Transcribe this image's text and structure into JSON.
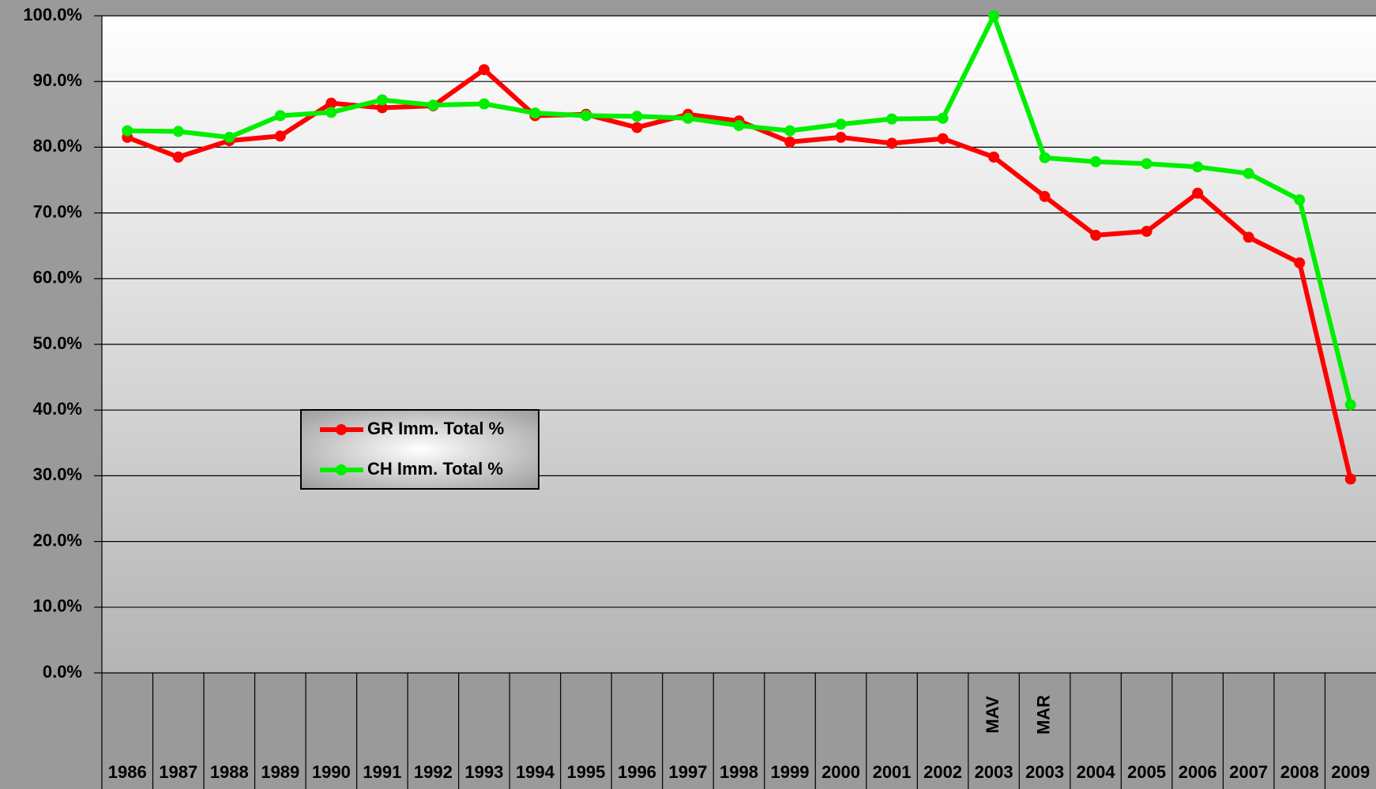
{
  "chart_data": {
    "type": "line",
    "categories": [
      "1986",
      "1987",
      "1988",
      "1989",
      "1990",
      "1991",
      "1992",
      "1993",
      "1994",
      "1995",
      "1996",
      "1997",
      "1998",
      "1999",
      "2000",
      "2001",
      "2002",
      "2003",
      "2003",
      "2004",
      "2005",
      "2006",
      "2007",
      "2008",
      "2009"
    ],
    "sublabels": [
      null,
      null,
      null,
      null,
      null,
      null,
      null,
      null,
      null,
      null,
      null,
      null,
      null,
      null,
      null,
      null,
      null,
      "MAV",
      "MAR",
      null,
      null,
      null,
      null,
      null,
      null
    ],
    "series": [
      {
        "name": "GR Imm. Total %",
        "color": "#ff0000",
        "values": [
          81.5,
          78.5,
          81,
          81.7,
          86.7,
          86,
          86.3,
          91.8,
          84.8,
          85,
          83,
          85,
          84,
          80.8,
          81.5,
          80.6,
          81.3,
          78.5,
          72.5,
          66.6,
          67.2,
          73,
          66.3,
          62.4,
          29.5
        ]
      },
      {
        "name": "CH Imm. Total %",
        "color": "#00ee00",
        "values": [
          82.5,
          82.4,
          81.5,
          84.8,
          85.3,
          87.2,
          86.4,
          86.6,
          85.2,
          84.8,
          84.7,
          84.4,
          83.3,
          82.5,
          83.5,
          84.3,
          84.4,
          100,
          78.4,
          77.8,
          77.5,
          77,
          76,
          72,
          40.8
        ]
      }
    ],
    "ylim": [
      0,
      100
    ],
    "yticks": [
      {
        "value": 0,
        "label": "0.0%"
      },
      {
        "value": 10,
        "label": "10.0%"
      },
      {
        "value": 20,
        "label": "20.0%"
      },
      {
        "value": 30,
        "label": "30.0%"
      },
      {
        "value": 40,
        "label": "40.0%"
      },
      {
        "value": 50,
        "label": "50.0%"
      },
      {
        "value": 60,
        "label": "60.0%"
      },
      {
        "value": 70,
        "label": "70.0%"
      },
      {
        "value": 80,
        "label": "80.0%"
      },
      {
        "value": 90,
        "label": "90.0%"
      },
      {
        "value": 100,
        "label": "100.0%"
      }
    ],
    "grid": true
  }
}
